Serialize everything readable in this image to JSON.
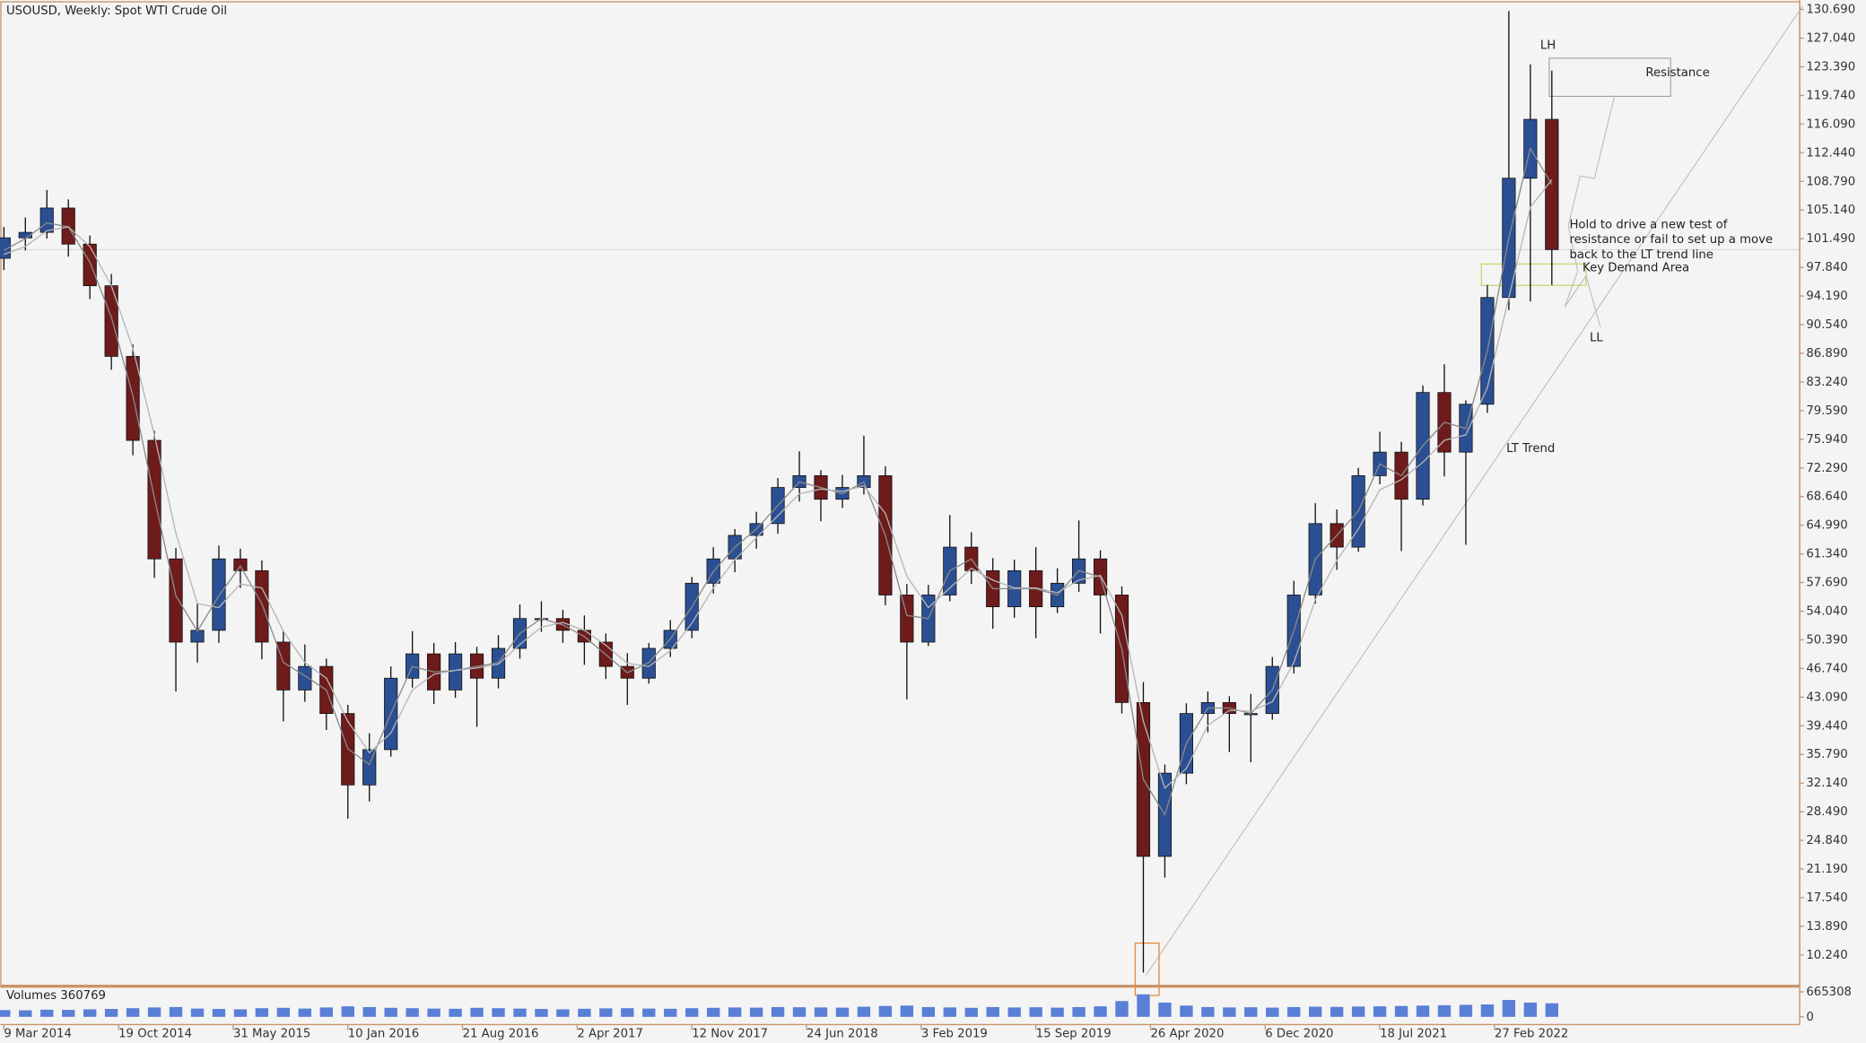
{
  "chart_data": {
    "type": "candlestick",
    "title": "USOUSD, Weekly:  Spot WTI Crude Oil",
    "up_color": "#2b4f93",
    "down_color": "#6e1b1b",
    "grid": false,
    "x": [
      0,
      6,
      12,
      18,
      24,
      30,
      36,
      42,
      48,
      54,
      60,
      66,
      72,
      78,
      84,
      90,
      96,
      102,
      108,
      114,
      120,
      126,
      132,
      138,
      144,
      150,
      156,
      162,
      168,
      174,
      180,
      186,
      192,
      198,
      204,
      210,
      216,
      222,
      228,
      234,
      240,
      246,
      252,
      258,
      264,
      270,
      276,
      282,
      288,
      294,
      300,
      306,
      312,
      318,
      324,
      330,
      336,
      342,
      348,
      354,
      360,
      366,
      372,
      378,
      384,
      390,
      396,
      402,
      408,
      414,
      420,
      426,
      432
    ],
    "open": [
      99.0,
      101.6,
      102.3,
      105.4,
      100.8,
      95.5,
      86.5,
      75.8,
      60.7,
      50.1,
      51.6,
      60.7,
      59.2,
      50.1,
      44.0,
      47.0,
      41.0,
      31.9,
      36.4,
      45.5,
      48.6,
      44.0,
      48.6,
      45.5,
      49.3,
      53.1,
      53.1,
      51.6,
      50.1,
      47.0,
      45.5,
      49.3,
      51.6,
      57.6,
      60.7,
      63.7,
      65.2,
      69.8,
      71.3,
      68.3,
      69.8,
      71.3,
      56.1,
      50.1,
      56.1,
      62.2,
      59.2,
      54.6,
      59.2,
      54.6,
      57.6,
      60.7,
      56.1,
      42.4,
      22.8,
      33.4,
      41.0,
      42.4,
      41.0,
      41.0,
      47.0,
      56.1,
      65.2,
      62.2,
      71.3,
      74.3,
      68.3,
      81.9,
      74.3,
      80.4,
      94.0,
      109.2,
      116.7
    ],
    "high": [
      103.0,
      104.2,
      107.7,
      106.5,
      101.9,
      97.0,
      88.0,
      77.0,
      62.1,
      55.0,
      62.4,
      62.0,
      60.5,
      51.5,
      49.8,
      48.0,
      42.1,
      38.5,
      47.0,
      51.5,
      50.0,
      50.1,
      49.5,
      51.0,
      54.9,
      55.3,
      54.2,
      53.5,
      51.2,
      48.7,
      50.0,
      52.9,
      58.4,
      62.2,
      64.5,
      66.7,
      71.0,
      74.4,
      72.0,
      71.4,
      76.4,
      72.5,
      57.5,
      57.4,
      66.3,
      64.1,
      60.8,
      60.6,
      62.2,
      59.5,
      65.6,
      61.8,
      57.2,
      45.0,
      34.5,
      42.3,
      43.8,
      43.2,
      43.5,
      48.2,
      57.9,
      67.8,
      67.0,
      72.3,
      76.9,
      75.6,
      82.8,
      85.5,
      80.9,
      95.6,
      130.5,
      123.7,
      122.9
    ],
    "low": [
      97.5,
      100.0,
      101.5,
      99.2,
      93.8,
      84.8,
      73.9,
      58.3,
      43.8,
      47.5,
      50.0,
      57.0,
      47.9,
      40.0,
      42.5,
      38.9,
      27.6,
      29.8,
      35.5,
      44.3,
      42.2,
      43.0,
      39.3,
      44.2,
      48.0,
      51.4,
      50.0,
      47.2,
      45.4,
      42.1,
      44.8,
      48.2,
      50.6,
      56.3,
      59.0,
      62.0,
      63.9,
      68.0,
      65.5,
      67.2,
      68.9,
      54.8,
      42.8,
      49.6,
      55.3,
      57.5,
      51.8,
      53.2,
      50.6,
      53.8,
      56.5,
      51.2,
      41.0,
      8.0,
      20.1,
      32.0,
      38.6,
      36.1,
      34.8,
      40.2,
      46.1,
      55.0,
      59.3,
      61.6,
      70.2,
      61.7,
      67.5,
      71.2,
      62.5,
      79.3,
      92.4,
      93.5,
      95.6
    ],
    "close": [
      101.6,
      102.3,
      105.4,
      100.8,
      95.5,
      86.5,
      75.8,
      60.7,
      50.1,
      51.6,
      60.7,
      59.2,
      50.1,
      44.0,
      47.0,
      41.0,
      31.9,
      36.4,
      45.5,
      48.6,
      44.0,
      48.6,
      45.5,
      49.3,
      53.1,
      53.1,
      51.6,
      50.1,
      47.0,
      45.5,
      49.3,
      51.6,
      57.6,
      60.7,
      63.7,
      65.2,
      69.8,
      71.3,
      68.3,
      69.8,
      71.3,
      56.1,
      50.1,
      56.1,
      62.2,
      59.2,
      54.6,
      59.2,
      54.6,
      57.6,
      60.7,
      56.1,
      42.4,
      22.8,
      33.4,
      41.0,
      42.4,
      41.0,
      41.0,
      47.0,
      56.1,
      65.2,
      62.2,
      71.3,
      74.3,
      68.3,
      81.9,
      74.3,
      80.4,
      94.0,
      109.2,
      116.7,
      100.1
    ],
    "moving_averages": [
      {
        "color": "#8a8a8a",
        "values": [
          100.0,
          101.5,
          103.5,
          103.0,
          98.5,
          91.5,
          81.5,
          68.5,
          56.0,
          51.5,
          56.0,
          59.8,
          55.0,
          47.5,
          45.8,
          44.0,
          36.5,
          34.5,
          41.0,
          47.0,
          46.3,
          46.5,
          47.0,
          47.5,
          51.2,
          53.1,
          52.3,
          50.8,
          48.5,
          46.2,
          47.5,
          50.5,
          54.6,
          59.1,
          62.2,
          64.5,
          67.5,
          70.5,
          69.8,
          69.0,
          70.5,
          63.7,
          53.5,
          53.1,
          59.2,
          60.7,
          56.9,
          56.9,
          56.9,
          56.1,
          59.2,
          58.4,
          49.2,
          32.6,
          28.1,
          37.2,
          41.7,
          41.7,
          41.0,
          44.0,
          51.5,
          60.7,
          63.7,
          66.8,
          72.8,
          71.3,
          75.1,
          78.1,
          77.3,
          87.2,
          101.6,
          113.0,
          108.4
        ]
      },
      {
        "color": "#b5b5b5",
        "values": [
          99.5,
          100.5,
          102.5,
          103.0,
          100.5,
          95.5,
          87.5,
          76.5,
          64.0,
          55.0,
          54.5,
          57.5,
          57.0,
          51.5,
          47.5,
          45.5,
          40.0,
          36.0,
          38.5,
          44.0,
          46.0,
          46.5,
          46.8,
          47.3,
          49.8,
          52.0,
          52.6,
          51.6,
          49.7,
          47.4,
          47.0,
          49.0,
          52.5,
          57.0,
          60.6,
          63.4,
          66.2,
          69.0,
          69.6,
          69.3,
          70.0,
          66.5,
          58.5,
          54.5,
          57.0,
          59.5,
          58.0,
          57.0,
          57.0,
          56.4,
          58.0,
          58.6,
          53.5,
          40.0,
          31.5,
          34.0,
          39.5,
          41.4,
          41.3,
          42.5,
          47.5,
          55.5,
          60.5,
          64.5,
          69.5,
          70.8,
          73.0,
          75.8,
          76.5,
          82.5,
          94.0,
          105.5,
          109.0
        ]
      }
    ],
    "xlim": [
      -1,
      501
    ],
    "xticks": [
      {
        "value": 0,
        "label": "9 Mar 2014"
      },
      {
        "value": 32,
        "label": "19 Oct 2014"
      },
      {
        "value": 64,
        "label": "31 May 2015"
      },
      {
        "value": 96,
        "label": "10 Jan 2016"
      },
      {
        "value": 128,
        "label": "21 Aug 2016"
      },
      {
        "value": 160,
        "label": "2 Apr 2017"
      },
      {
        "value": 192,
        "label": "12 Nov 2017"
      },
      {
        "value": 224,
        "label": "24 Jun 2018"
      },
      {
        "value": 256,
        "label": "3 Feb 2019"
      },
      {
        "value": 288,
        "label": "15 Sep 2019"
      },
      {
        "value": 320,
        "label": "26 Apr 2020"
      },
      {
        "value": 352,
        "label": "6 Dec 2020"
      },
      {
        "value": 384,
        "label": "18 Jul 2021"
      },
      {
        "value": 416,
        "label": "27 Feb 2022"
      }
    ],
    "ylim": [
      6.45,
      131.6
    ],
    "yticks": [
      {
        "value": 130.69,
        "label": "130.690"
      },
      {
        "value": 127.04,
        "label": "127.040"
      },
      {
        "value": 123.39,
        "label": "123.390"
      },
      {
        "value": 119.74,
        "label": "119.740"
      },
      {
        "value": 116.09,
        "label": "116.090"
      },
      {
        "value": 112.44,
        "label": "112.440"
      },
      {
        "value": 108.79,
        "label": "108.790"
      },
      {
        "value": 105.14,
        "label": "105.140"
      },
      {
        "value": 101.49,
        "label": "101.490"
      },
      {
        "value": 97.84,
        "label": "97.840"
      },
      {
        "value": 94.19,
        "label": "94.190"
      },
      {
        "value": 90.54,
        "label": "90.540"
      },
      {
        "value": 86.89,
        "label": "86.890"
      },
      {
        "value": 83.24,
        "label": "83.240"
      },
      {
        "value": 79.59,
        "label": "79.590"
      },
      {
        "value": 75.94,
        "label": "75.940"
      },
      {
        "value": 72.29,
        "label": "72.290"
      },
      {
        "value": 68.64,
        "label": "68.640"
      },
      {
        "value": 64.99,
        "label": "64.990"
      },
      {
        "value": 61.34,
        "label": "61.340"
      },
      {
        "value": 57.69,
        "label": "57.690"
      },
      {
        "value": 54.04,
        "label": "54.040"
      },
      {
        "value": 50.39,
        "label": "50.390"
      },
      {
        "value": 46.74,
        "label": "46.740"
      },
      {
        "value": 43.09,
        "label": "43.090"
      },
      {
        "value": 39.44,
        "label": "39.440"
      },
      {
        "value": 35.79,
        "label": "35.790"
      },
      {
        "value": 32.14,
        "label": "32.140"
      },
      {
        "value": 28.49,
        "label": "28.490"
      },
      {
        "value": 24.84,
        "label": "24.840"
      },
      {
        "value": 21.19,
        "label": "21.190"
      },
      {
        "value": 17.54,
        "label": "17.540"
      },
      {
        "value": 13.89,
        "label": "13.890"
      },
      {
        "value": 10.24,
        "label": "10.240"
      }
    ],
    "volume": {
      "title": "Volumes 360769",
      "color": "#5a7fd6",
      "values": [
        180000,
        175000,
        190000,
        185000,
        200000,
        210000,
        230000,
        250000,
        260000,
        220000,
        210000,
        200000,
        230000,
        240000,
        220000,
        250000,
        280000,
        260000,
        240000,
        230000,
        220000,
        215000,
        240000,
        230000,
        220000,
        210000,
        200000,
        215000,
        225000,
        230000,
        220000,
        215000,
        230000,
        240000,
        250000,
        245000,
        260000,
        255000,
        250000,
        245000,
        270000,
        290000,
        300000,
        260000,
        250000,
        240000,
        260000,
        250000,
        255000,
        245000,
        260000,
        280000,
        420000,
        600000,
        380000,
        300000,
        260000,
        250000,
        255000,
        245000,
        260000,
        270000,
        265000,
        275000,
        280000,
        290000,
        300000,
        310000,
        320000,
        330000,
        450000,
        380000,
        360769
      ],
      "ylim": [
        0,
        665308
      ],
      "yticks": [
        665308,
        0
      ]
    },
    "annotations": [
      {
        "text": "LH"
      },
      {
        "text": "Resistance"
      },
      {
        "lines": [
          "Hold to drive a new test of",
          "resistance or fail to set up a move",
          "back to the LT trend line"
        ]
      },
      {
        "text": "Key Demand Area"
      },
      {
        "text": "LL"
      },
      {
        "text": "LT Trend"
      }
    ]
  }
}
